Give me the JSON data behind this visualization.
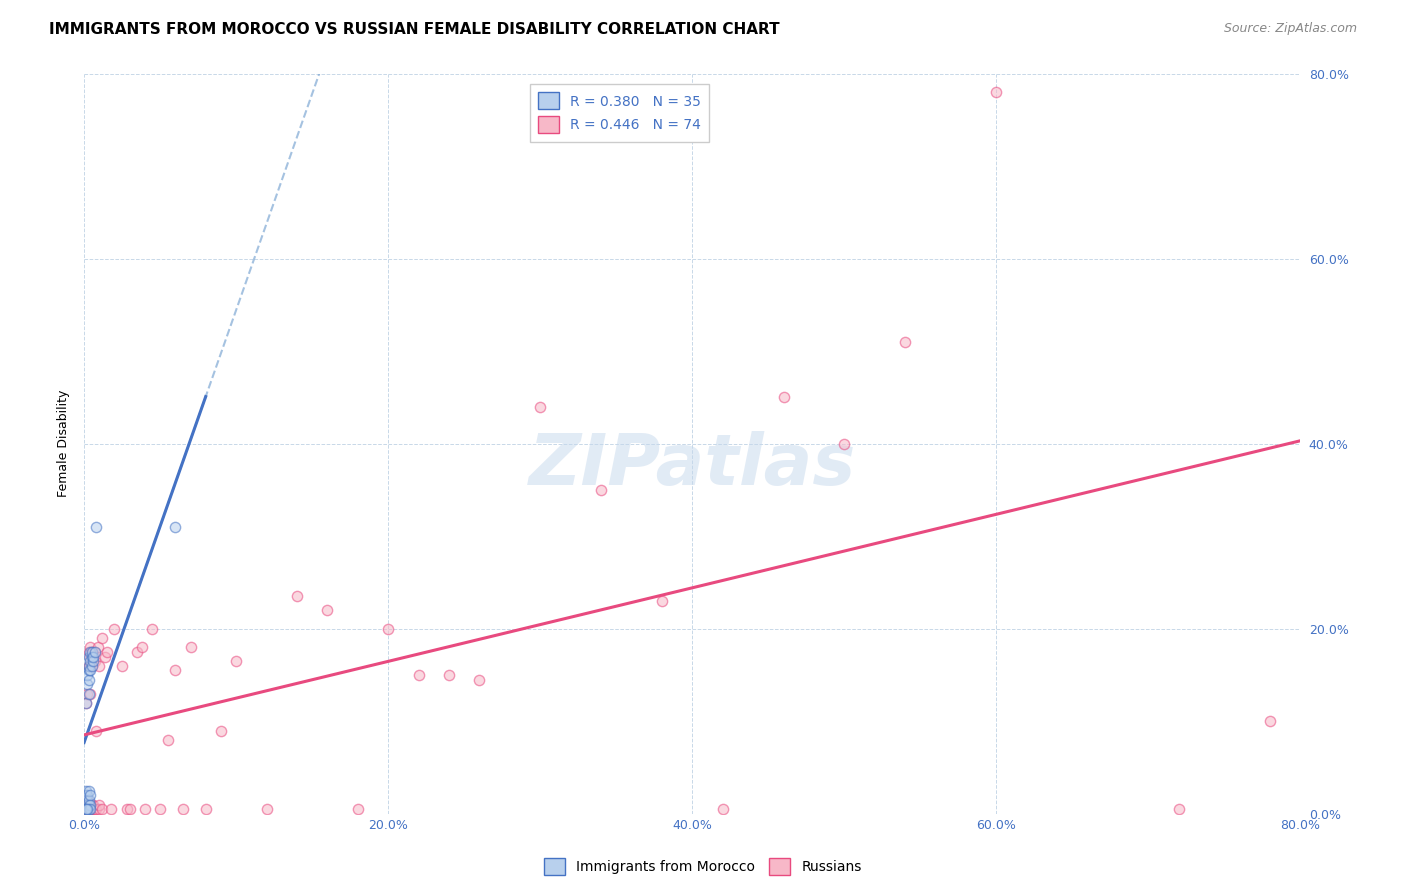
{
  "title": "IMMIGRANTS FROM MOROCCO VS RUSSIAN FEMALE DISABILITY CORRELATION CHART",
  "source": "Source: ZipAtlas.com",
  "ylabel": "Female Disability",
  "xlim": [
    0,
    0.8
  ],
  "ylim": [
    0,
    0.8
  ],
  "xticks": [
    0.0,
    0.2,
    0.4,
    0.6,
    0.8
  ],
  "yticks": [
    0.0,
    0.2,
    0.4,
    0.6,
    0.8
  ],
  "legend_r_blue": "R = 0.380",
  "legend_n_blue": "N = 35",
  "legend_r_pink": "R = 0.446",
  "legend_n_pink": "N = 74",
  "legend_label_blue": "Immigrants from Morocco",
  "legend_label_pink": "Russians",
  "blue_fill_color": "#b8d0ed",
  "pink_fill_color": "#f7b8c8",
  "blue_edge_color": "#4472C4",
  "pink_edge_color": "#E84A7F",
  "blue_line_color": "#4472C4",
  "pink_line_color": "#E84A7F",
  "dash_line_color": "#7fa8d4",
  "blue_dots_x": [
    0.001,
    0.001,
    0.001,
    0.001,
    0.002,
    0.002,
    0.002,
    0.002,
    0.002,
    0.002,
    0.003,
    0.003,
    0.003,
    0.003,
    0.003,
    0.003,
    0.003,
    0.003,
    0.003,
    0.004,
    0.004,
    0.004,
    0.004,
    0.004,
    0.004,
    0.005,
    0.005,
    0.005,
    0.006,
    0.006,
    0.007,
    0.008,
    0.06,
    0.001,
    0.002
  ],
  "blue_dots_y": [
    0.02,
    0.025,
    0.12,
    0.005,
    0.015,
    0.02,
    0.01,
    0.14,
    0.15,
    0.005,
    0.13,
    0.145,
    0.155,
    0.16,
    0.17,
    0.01,
    0.015,
    0.025,
    0.005,
    0.165,
    0.175,
    0.155,
    0.02,
    0.01,
    0.005,
    0.17,
    0.175,
    0.16,
    0.165,
    0.17,
    0.175,
    0.31,
    0.31,
    0.005,
    0.005
  ],
  "pink_dots_x": [
    0.001,
    0.001,
    0.001,
    0.002,
    0.002,
    0.002,
    0.002,
    0.003,
    0.003,
    0.003,
    0.003,
    0.003,
    0.004,
    0.004,
    0.004,
    0.004,
    0.004,
    0.004,
    0.005,
    0.005,
    0.005,
    0.005,
    0.006,
    0.006,
    0.006,
    0.006,
    0.007,
    0.007,
    0.007,
    0.008,
    0.008,
    0.009,
    0.01,
    0.01,
    0.01,
    0.012,
    0.012,
    0.014,
    0.015,
    0.018,
    0.02,
    0.025,
    0.028,
    0.03,
    0.035,
    0.038,
    0.04,
    0.045,
    0.05,
    0.055,
    0.06,
    0.065,
    0.07,
    0.08,
    0.09,
    0.1,
    0.12,
    0.14,
    0.16,
    0.18,
    0.2,
    0.22,
    0.24,
    0.26,
    0.3,
    0.34,
    0.38,
    0.42,
    0.46,
    0.5,
    0.54,
    0.6,
    0.72,
    0.78
  ],
  "pink_dots_y": [
    0.12,
    0.005,
    0.01,
    0.13,
    0.005,
    0.01,
    0.015,
    0.005,
    0.01,
    0.16,
    0.175,
    0.005,
    0.13,
    0.005,
    0.01,
    0.16,
    0.17,
    0.18,
    0.005,
    0.01,
    0.16,
    0.175,
    0.005,
    0.01,
    0.165,
    0.175,
    0.165,
    0.175,
    0.005,
    0.005,
    0.09,
    0.18,
    0.005,
    0.16,
    0.01,
    0.005,
    0.19,
    0.17,
    0.175,
    0.005,
    0.2,
    0.16,
    0.005,
    0.005,
    0.175,
    0.18,
    0.005,
    0.2,
    0.005,
    0.08,
    0.155,
    0.005,
    0.18,
    0.005,
    0.09,
    0.165,
    0.005,
    0.235,
    0.22,
    0.005,
    0.2,
    0.15,
    0.15,
    0.145,
    0.44,
    0.35,
    0.23,
    0.005,
    0.45,
    0.4,
    0.51,
    0.78,
    0.005,
    0.1
  ],
  "watermark_text": "ZIPatlas",
  "background_color": "#ffffff",
  "grid_color": "#c8d8e8",
  "title_fontsize": 11,
  "axis_label_fontsize": 9,
  "tick_fontsize": 9,
  "source_fontsize": 9,
  "legend_fontsize": 10,
  "dot_size": 55,
  "dot_alpha": 0.55,
  "dot_linewidth": 1.0,
  "blue_line_intercept": 0.125,
  "blue_line_slope": 2.2,
  "pink_line_intercept": 0.06,
  "pink_line_slope": 0.48,
  "dash_line_intercept": 0.125,
  "dash_line_slope": 2.2
}
